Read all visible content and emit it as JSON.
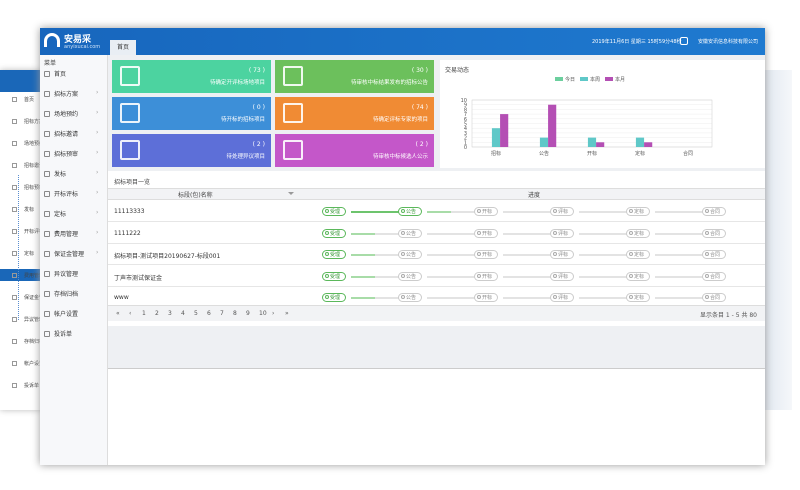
{
  "header": {
    "logo": "安易采",
    "logo_sub": "anyixucai.com",
    "tab": "首页",
    "datetime": "2019年11月6日 星期三 15时59分48秒",
    "company": "安徽安讯信息科技有限公司"
  },
  "sidebar": {
    "title": "菜单",
    "items": [
      "首页",
      "招标方案",
      "场地预约",
      "招标邀请",
      "招标预审",
      "发标",
      "开标评标",
      "定标",
      "费用管理",
      "保证金管理",
      "异议管理",
      "存档归档",
      "帐户设置",
      "投诉单"
    ]
  },
  "tiles": [
    {
      "count": "( 73 )",
      "label": "待确定开评标场地项目",
      "color": "#4cd3a0"
    },
    {
      "count": "( 30 )",
      "label": "待审核中标结果发布的招标公告",
      "color": "#6cc05c"
    },
    {
      "count": "( 0 )",
      "label": "待开标的招标项目",
      "color": "#3d8fd8"
    },
    {
      "count": "( 74 )",
      "label": "待确定评标专家的项目",
      "color": "#f08b34"
    },
    {
      "count": "( 2 )",
      "label": "待处理异议项目",
      "color": "#5d6fd8"
    },
    {
      "count": "( 2 )",
      "label": "待审核中标候选人公示",
      "color": "#c457c9"
    }
  ],
  "chart": {
    "title": "交易动态",
    "categories": [
      "招标",
      "公告",
      "开标",
      "定标",
      "合同"
    ],
    "series": [
      {
        "name": "今日",
        "color": "#6ccf9e",
        "values": [
          0,
          0,
          0,
          0,
          0
        ]
      },
      {
        "name": "本周",
        "color": "#5fc8c8",
        "values": [
          4,
          2,
          2,
          2,
          0
        ]
      },
      {
        "name": "本月",
        "color": "#b44fb4",
        "values": [
          7,
          9,
          1,
          1,
          0
        ]
      }
    ],
    "ylim": [
      0,
      10
    ],
    "yticks": [
      0,
      1,
      2,
      3,
      4,
      5,
      6,
      7,
      8,
      9,
      10
    ]
  },
  "table": {
    "title": "招标项目一览",
    "columns": [
      "标段(包)名称",
      "进度"
    ],
    "steps": [
      "受理",
      "公告",
      "开标",
      "评标",
      "定标",
      "合同"
    ],
    "rows": [
      {
        "name": "11113333",
        "completed": 2
      },
      {
        "name": "1111222",
        "completed": 1
      },
      {
        "name": "招标项目-测试项目20190627-标段001",
        "completed": 1
      },
      {
        "name": "丁声市测试保证金",
        "completed": 1
      },
      {
        "name": "www",
        "completed": 1
      }
    ]
  },
  "pager": {
    "first": "«",
    "prev": "‹",
    "pages": [
      1,
      2,
      3,
      4,
      5,
      6,
      7,
      8,
      9,
      10
    ],
    "next": "›",
    "last": "»",
    "summary": "显示条目 1 - 5 共 80"
  }
}
